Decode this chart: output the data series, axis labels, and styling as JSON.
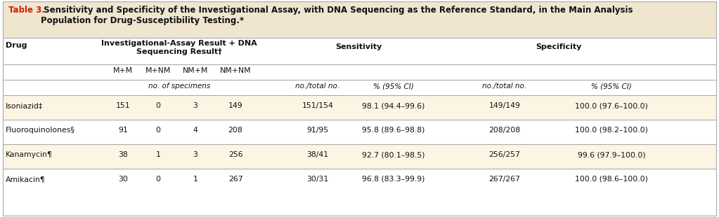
{
  "title_prefix": "Table 3.",
  "title_rest": " Sensitivity and Specificity of the Investigational Assay, with DNA Sequencing as the Reference Standard, in the Main Analysis\nPopulation for Drug-Susceptibility Testing.*",
  "title_bg": "#f0e6d0",
  "row_alt_bg": "#fdf5e4",
  "row_white_bg": "#ffffff",
  "border_color": "#aaaaaa",
  "col_header_1": "Drug",
  "col_header_group": "Investigational-Assay Result + DNA\nSequencing Result†",
  "col_header_sensitivity": "Sensitivity",
  "col_header_specificity": "Specificity",
  "subheaders_assay": [
    "M+M",
    "M+NM",
    "NM+M",
    "NM+NM"
  ],
  "subheaders_units": [
    "no. of specimens",
    "no./total no.",
    "% (95% CI)",
    "no./total no.",
    "% (95% CI)"
  ],
  "rows": [
    {
      "drug": "Isoniazid‡",
      "mm": "151",
      "mnm": "0",
      "nmm": "3",
      "nmnm": "149",
      "sens_no": "151/154",
      "sens_pct": "98.1 (94.4–99.6)",
      "spec_no": "149/149",
      "spec_pct": "100.0 (97.6–100.0)",
      "highlight": true
    },
    {
      "drug": "Fluoroquinolones§",
      "mm": "91",
      "mnm": "0",
      "nmm": "4",
      "nmnm": "208",
      "sens_no": "91/95",
      "sens_pct": "95.8 (89.6–98.8)",
      "spec_no": "208/208",
      "spec_pct": "100.0 (98.2–100.0)",
      "highlight": false
    },
    {
      "drug": "Kanamycin¶",
      "mm": "38",
      "mnm": "1",
      "nmm": "3",
      "nmnm": "256",
      "sens_no": "38/41",
      "sens_pct": "92.7 (80.1–98.5)",
      "spec_no": "256/257",
      "spec_pct": "99.6 (97.9–100.0)",
      "highlight": true
    },
    {
      "drug": "Amikacin¶",
      "mm": "30",
      "mnm": "0",
      "nmm": "1",
      "nmnm": "267",
      "sens_no": "30/31",
      "sens_pct": "96.8 (83.3–99.9)",
      "spec_no": "267/267",
      "spec_pct": "100.0 (98.6–100.0)",
      "highlight": false
    }
  ]
}
